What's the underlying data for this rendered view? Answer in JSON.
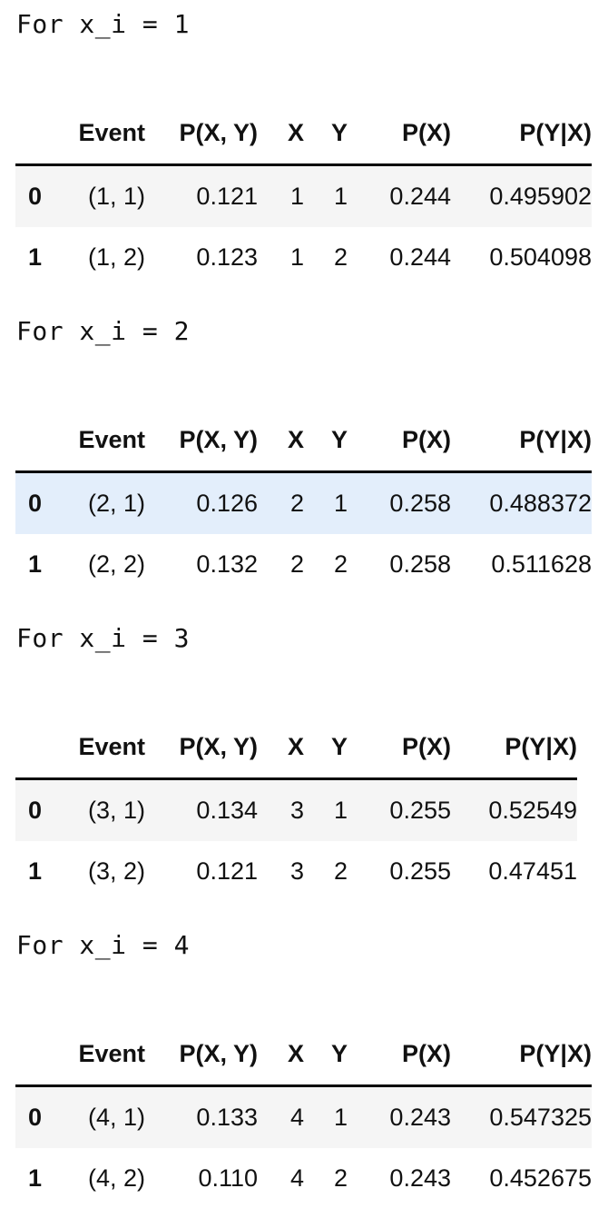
{
  "headers": [
    "",
    "Event",
    "P(X, Y)",
    "X",
    "Y",
    "P(X)",
    "P(Y|X)"
  ],
  "blocks": [
    {
      "label": "For x_i = 1",
      "rows": [
        {
          "index": "0",
          "event": "(1, 1)",
          "pxy": "0.121",
          "x": "1",
          "y": "1",
          "px": "0.244",
          "pyx": "0.495902"
        },
        {
          "index": "1",
          "event": "(1, 2)",
          "pxy": "0.123",
          "x": "1",
          "y": "2",
          "px": "0.244",
          "pyx": "0.504098"
        }
      ]
    },
    {
      "label": "For x_i = 2",
      "rows": [
        {
          "index": "0",
          "event": "(2, 1)",
          "pxy": "0.126",
          "x": "2",
          "y": "1",
          "px": "0.258",
          "pyx": "0.488372"
        },
        {
          "index": "1",
          "event": "(2, 2)",
          "pxy": "0.132",
          "x": "2",
          "y": "2",
          "px": "0.258",
          "pyx": "0.511628"
        }
      ]
    },
    {
      "label": "For x_i = 3",
      "rows": [
        {
          "index": "0",
          "event": "(3, 1)",
          "pxy": "0.134",
          "x": "3",
          "y": "1",
          "px": "0.255",
          "pyx": "0.52549"
        },
        {
          "index": "1",
          "event": "(3, 2)",
          "pxy": "0.121",
          "x": "3",
          "y": "2",
          "px": "0.255",
          "pyx": "0.47451"
        }
      ]
    },
    {
      "label": "For x_i = 4",
      "rows": [
        {
          "index": "0",
          "event": "(4, 1)",
          "pxy": "0.133",
          "x": "4",
          "y": "1",
          "px": "0.243",
          "pyx": "0.547325"
        },
        {
          "index": "1",
          "event": "(4, 2)",
          "pxy": "0.110",
          "x": "4",
          "y": "2",
          "px": "0.243",
          "pyx": "0.452675"
        }
      ]
    }
  ],
  "colors": {
    "row_stripe": "#f5f5f5",
    "row_hover": "#e3eefb",
    "header_rule": "#000000"
  }
}
